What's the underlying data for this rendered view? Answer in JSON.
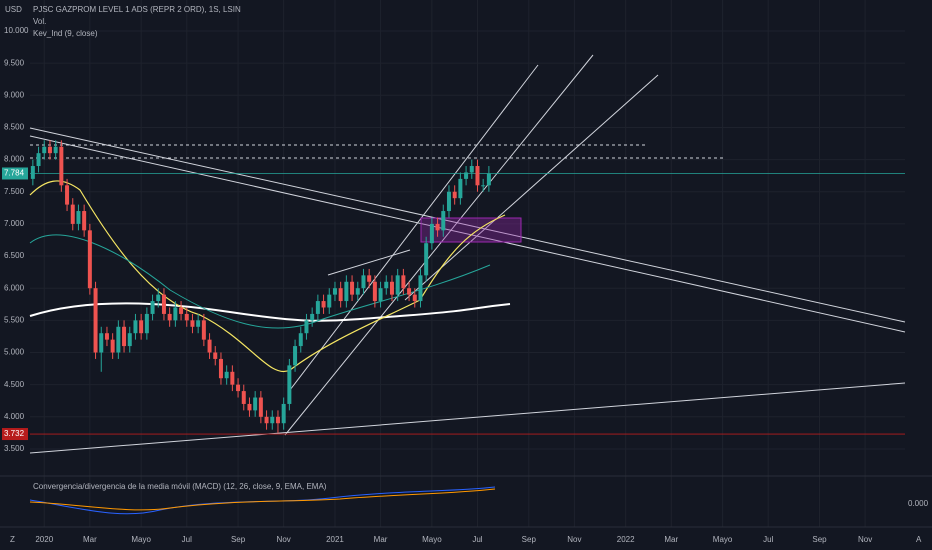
{
  "chart_data": {
    "type": "candlestick",
    "currency": "USD",
    "title": "PJSC GAZPROM LEVEL 1 ADS (REPR 2 ORD), 1S, LSIN",
    "indicators": [
      "Vol.",
      "Kev_Ind (9, close)"
    ],
    "macd_title": "Convergencia/divergencia de la media móvil (MACD) (12, 26, close, 9, EMA, EMA)",
    "macd_tick": {
      "value": 0,
      "label": "0.000"
    },
    "corner_labels": [
      "Z",
      "A"
    ],
    "x": [
      0,
      1,
      2,
      3,
      4,
      5,
      6,
      7,
      8,
      9,
      10,
      11,
      12,
      13,
      14,
      15,
      16,
      17,
      18,
      19,
      20,
      21,
      22,
      23,
      24,
      25,
      26,
      27,
      28,
      29,
      30,
      31,
      32,
      33,
      34,
      35,
      36,
      37,
      38,
      39,
      40,
      41,
      42,
      43,
      44,
      45,
      46,
      47,
      48,
      49,
      50,
      51,
      52,
      53,
      54,
      55,
      56,
      57,
      58,
      59,
      60,
      61,
      62,
      63,
      64,
      65,
      66,
      67,
      68,
      69,
      70,
      71,
      72,
      73,
      74,
      75,
      76,
      77,
      78,
      79,
      80
    ],
    "open": [
      7.7,
      7.9,
      8.1,
      8.2,
      8.1,
      8.2,
      7.6,
      7.3,
      7.0,
      7.2,
      6.9,
      6.0,
      5.0,
      5.3,
      5.2,
      5.0,
      5.4,
      5.1,
      5.3,
      5.5,
      5.3,
      5.6,
      5.8,
      5.9,
      5.6,
      5.5,
      5.7,
      5.6,
      5.5,
      5.4,
      5.5,
      5.2,
      5.0,
      4.9,
      4.6,
      4.7,
      4.5,
      4.4,
      4.2,
      4.1,
      4.3,
      4.0,
      3.9,
      4.0,
      3.9,
      4.2,
      4.8,
      5.1,
      5.3,
      5.5,
      5.6,
      5.8,
      5.7,
      5.9,
      6.0,
      5.8,
      6.1,
      5.9,
      6.0,
      6.2,
      6.1,
      5.8,
      6.0,
      6.1,
      5.9,
      6.2,
      6.0,
      5.9,
      5.8,
      6.2,
      6.7,
      7.0,
      6.9,
      7.2,
      7.5,
      7.4,
      7.7,
      7.8,
      7.9,
      7.6,
      7.6
    ],
    "high": [
      8.0,
      8.2,
      8.3,
      8.3,
      8.3,
      8.3,
      7.7,
      7.4,
      7.3,
      7.3,
      7.0,
      6.1,
      5.4,
      5.4,
      5.3,
      5.5,
      5.5,
      5.4,
      5.6,
      5.6,
      5.7,
      5.9,
      6.0,
      6.0,
      5.7,
      5.8,
      5.8,
      5.7,
      5.6,
      5.6,
      5.6,
      5.3,
      5.1,
      5.0,
      4.8,
      4.8,
      4.6,
      4.5,
      4.3,
      4.4,
      4.4,
      4.1,
      4.1,
      4.1,
      4.3,
      4.9,
      5.2,
      5.4,
      5.6,
      5.7,
      5.9,
      5.9,
      6.0,
      6.1,
      6.1,
      6.2,
      6.2,
      6.1,
      6.3,
      6.3,
      6.2,
      6.1,
      6.2,
      6.2,
      6.3,
      6.3,
      6.1,
      6.0,
      6.3,
      6.8,
      7.1,
      7.1,
      7.3,
      7.6,
      7.6,
      7.8,
      7.9,
      8.0,
      8.0,
      7.7,
      7.9
    ],
    "low": [
      7.6,
      7.8,
      8.0,
      8.0,
      8.0,
      7.5,
      7.2,
      6.9,
      6.9,
      6.8,
      5.9,
      4.9,
      4.7,
      5.1,
      4.9,
      4.9,
      5.0,
      5.0,
      5.2,
      5.2,
      5.2,
      5.5,
      5.7,
      5.5,
      5.4,
      5.4,
      5.5,
      5.4,
      5.3,
      5.3,
      5.1,
      4.9,
      4.8,
      4.5,
      4.5,
      4.4,
      4.3,
      4.1,
      4.0,
      4.0,
      3.9,
      3.8,
      3.8,
      3.75,
      3.8,
      4.1,
      4.7,
      5.0,
      5.2,
      5.4,
      5.5,
      5.6,
      5.6,
      5.8,
      5.7,
      5.7,
      5.8,
      5.8,
      5.9,
      6.0,
      5.7,
      5.7,
      5.9,
      5.8,
      5.8,
      5.9,
      5.8,
      5.7,
      5.7,
      6.1,
      6.6,
      6.8,
      6.8,
      7.1,
      7.3,
      7.3,
      7.6,
      7.7,
      7.5,
      7.5,
      7.5
    ],
    "close": [
      7.9,
      8.1,
      8.2,
      8.1,
      8.2,
      7.6,
      7.3,
      7.0,
      7.2,
      6.9,
      6.0,
      5.0,
      5.3,
      5.2,
      5.0,
      5.4,
      5.1,
      5.3,
      5.5,
      5.3,
      5.6,
      5.8,
      5.9,
      5.6,
      5.5,
      5.7,
      5.6,
      5.5,
      5.4,
      5.5,
      5.2,
      5.0,
      4.9,
      4.6,
      4.7,
      4.5,
      4.4,
      4.2,
      4.1,
      4.3,
      4.0,
      3.9,
      4.0,
      3.9,
      4.2,
      4.8,
      5.1,
      5.3,
      5.5,
      5.6,
      5.8,
      5.7,
      5.9,
      6.0,
      5.8,
      6.1,
      5.9,
      6.0,
      6.2,
      6.1,
      5.8,
      6.0,
      6.1,
      5.9,
      6.2,
      6.0,
      5.9,
      5.8,
      6.2,
      6.7,
      7.0,
      6.9,
      7.2,
      7.5,
      7.4,
      7.7,
      7.8,
      7.9,
      7.6,
      7.6,
      7.784
    ],
    "up_color": "#26a69a",
    "down_color": "#ef5350",
    "price_lines": [
      {
        "value": 7.784,
        "color": "#26a69a"
      },
      {
        "value": 3.732,
        "color": "#b71c1c"
      }
    ],
    "xlim": [
      -0.5,
      153
    ],
    "xticks": [
      {
        "value": 2,
        "label": "2020"
      },
      {
        "value": 10,
        "label": "Mar"
      },
      {
        "value": 19,
        "label": "Mayo"
      },
      {
        "value": 27,
        "label": "Jul"
      },
      {
        "value": 36,
        "label": "Sep"
      },
      {
        "value": 44,
        "label": "Nov"
      },
      {
        "value": 53,
        "label": "2021"
      },
      {
        "value": 61,
        "label": "Mar"
      },
      {
        "value": 70,
        "label": "Mayo"
      },
      {
        "value": 78,
        "label": "Jul"
      },
      {
        "value": 87,
        "label": "Sep"
      },
      {
        "value": 95,
        "label": "Nov"
      },
      {
        "value": 104,
        "label": "2022"
      },
      {
        "value": 112,
        "label": "Mar"
      },
      {
        "value": 121,
        "label": "Mayo"
      },
      {
        "value": 129,
        "label": "Jul"
      },
      {
        "value": 138,
        "label": "Sep"
      },
      {
        "value": 146,
        "label": "Nov"
      }
    ],
    "ylim": [
      3.095,
      10.482
    ],
    "yticks": [
      {
        "value": 3.5,
        "label": "3.500"
      },
      {
        "value": 4,
        "label": "4.000"
      },
      {
        "value": 4.5,
        "label": "4.500"
      },
      {
        "value": 5,
        "label": "5.000"
      },
      {
        "value": 5.5,
        "label": "5.500"
      },
      {
        "value": 6,
        "label": "6.000"
      },
      {
        "value": 6.5,
        "label": "6.500"
      },
      {
        "value": 7,
        "label": "7.000"
      },
      {
        "value": 7.5,
        "label": "7.500"
      },
      {
        "value": 8,
        "label": "8.000"
      },
      {
        "value": 8.5,
        "label": "8.500"
      },
      {
        "value": 9,
        "label": "9.000"
      },
      {
        "value": 9.5,
        "label": "9.500"
      },
      {
        "value": 10,
        "label": "10.000"
      }
    ],
    "grid": true
  }
}
